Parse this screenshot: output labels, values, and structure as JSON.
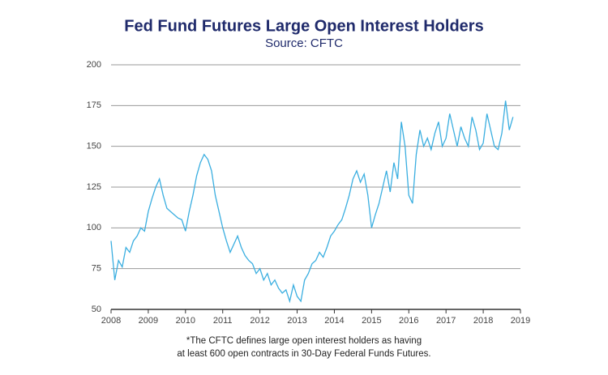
{
  "chart_data": {
    "type": "line",
    "title": "Fed Fund Futures Large Open Interest Holders",
    "subtitle": "Source:  CFTC",
    "footnote": [
      "*The CFTC defines large open interest holders as having",
      "at least 600 open contracts in 30-Day Federal Funds Futures."
    ],
    "x": [
      2008.0,
      2008.1,
      2008.2,
      2008.3,
      2008.4,
      2008.5,
      2008.6,
      2008.7,
      2008.8,
      2008.9,
      2009.0,
      2009.1,
      2009.2,
      2009.3,
      2009.4,
      2009.5,
      2009.6,
      2009.7,
      2009.8,
      2009.9,
      2010.0,
      2010.1,
      2010.2,
      2010.3,
      2010.4,
      2010.5,
      2010.6,
      2010.7,
      2010.8,
      2010.9,
      2011.0,
      2011.1,
      2011.2,
      2011.3,
      2011.4,
      2011.5,
      2011.6,
      2011.7,
      2011.8,
      2011.9,
      2012.0,
      2012.1,
      2012.2,
      2012.3,
      2012.4,
      2012.5,
      2012.6,
      2012.7,
      2012.8,
      2012.9,
      2013.0,
      2013.1,
      2013.2,
      2013.3,
      2013.4,
      2013.5,
      2013.6,
      2013.7,
      2013.8,
      2013.9,
      2014.0,
      2014.1,
      2014.2,
      2014.3,
      2014.4,
      2014.5,
      2014.6,
      2014.7,
      2014.8,
      2014.9,
      2015.0,
      2015.1,
      2015.2,
      2015.3,
      2015.4,
      2015.5,
      2015.6,
      2015.7,
      2015.8,
      2015.9,
      2016.0,
      2016.1,
      2016.2,
      2016.3,
      2016.4,
      2016.5,
      2016.6,
      2016.7,
      2016.8,
      2016.9,
      2017.0,
      2017.1,
      2017.2,
      2017.3,
      2017.4,
      2017.5,
      2017.6,
      2017.7,
      2017.8,
      2017.9,
      2018.0,
      2018.1,
      2018.2,
      2018.3,
      2018.4,
      2018.5,
      2018.6,
      2018.7,
      2018.8
    ],
    "series": [
      {
        "color": "#3aaee0",
        "values": [
          92,
          68,
          80,
          76,
          88,
          85,
          92,
          95,
          100,
          98,
          110,
          118,
          125,
          130,
          120,
          112,
          110,
          108,
          106,
          105,
          98,
          110,
          120,
          132,
          140,
          145,
          142,
          135,
          120,
          110,
          100,
          92,
          85,
          90,
          95,
          88,
          83,
          80,
          78,
          72,
          75,
          68,
          72,
          65,
          68,
          63,
          60,
          62,
          55,
          65,
          58,
          55,
          68,
          72,
          78,
          80,
          85,
          82,
          88,
          95,
          98,
          102,
          105,
          112,
          120,
          130,
          135,
          128,
          133,
          120,
          100,
          108,
          115,
          125,
          135,
          122,
          140,
          130,
          165,
          150,
          120,
          115,
          145,
          160,
          150,
          155,
          148,
          158,
          165,
          150,
          155,
          170,
          160,
          150,
          162,
          155,
          150,
          168,
          160,
          148,
          152,
          170,
          160,
          150,
          148,
          158,
          178,
          160,
          168
        ]
      }
    ],
    "xlim": [
      2008,
      2019
    ],
    "xticks": [
      2008,
      2009,
      2010,
      2011,
      2012,
      2013,
      2014,
      2015,
      2016,
      2017,
      2018,
      2019
    ],
    "ylim": [
      50,
      200
    ],
    "yticks": [
      50,
      75,
      100,
      125,
      150,
      175,
      200
    ],
    "grid": true
  }
}
